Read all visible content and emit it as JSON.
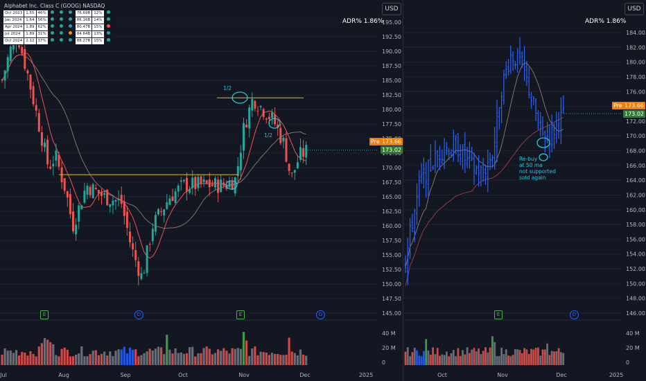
{
  "panes": [
    {
      "currency_label": "USD",
      "adr_label": "ADR%  1.86%",
      "price_axis": [
        "195.00",
        "192.50",
        "190.00",
        "187.50",
        "185.00",
        "182.50",
        "180.00",
        "177.50",
        "175.00",
        "172.50",
        "170.00",
        "167.50",
        "165.00",
        "162.50",
        "160.00",
        "157.50",
        "155.00",
        "152.50",
        "150.00",
        "147.50",
        "145.00"
      ],
      "pre_label": "Pre",
      "pre_price": "173.66",
      "last_price": "173.02",
      "volume_axis": [
        "40 M",
        "20 M",
        "0"
      ],
      "time_axis": [
        "Jul",
        "Aug",
        "Sep",
        "Oct",
        "Nov",
        "Dec",
        "2025"
      ],
      "earnings_marker": "E",
      "dividend_marker": "D",
      "annotations": [
        "1/2",
        "1/2"
      ],
      "table_title": "Alphabet Inc. Class C (GOOG) NASDAQ",
      "table_rows": [
        {
          "period": "Oct 2023",
          "eps": "1.55",
          "growth": "46%",
          "d1": "green",
          "d2": "green",
          "d3": "green",
          "rev": "76.69B",
          "rg": "12%",
          "d4": "green"
        },
        {
          "period": "Jan 2024",
          "eps": "1.64",
          "growth": "56%",
          "d1": "green",
          "d2": "green",
          "d3": "green",
          "rev": "86.16B",
          "rg": "14%",
          "d4": "green"
        },
        {
          "period": "Apr 2024",
          "eps": "1.89",
          "growth": "62%",
          "d1": "green",
          "d2": "green",
          "d3": "green",
          "rev": "80.47B",
          "rg": "15%",
          "d4": "red"
        },
        {
          "period": "Jul 2024",
          "eps": "1.89",
          "growth": "31%",
          "d1": "green",
          "d2": "green",
          "d3": "orange",
          "rev": "84.64B",
          "rg": "13%",
          "d4": "green"
        },
        {
          "period": "Oct 2024",
          "eps": "2.12",
          "growth": "37%",
          "d1": "green",
          "d2": "green",
          "d3": "green",
          "rev": "88.27B",
          "rg": "15%",
          "d4": "green"
        }
      ]
    },
    {
      "currency_label": "USD",
      "adr_label": "ADR%  1.86%",
      "price_axis": [
        "184.00",
        "182.00",
        "180.00",
        "178.00",
        "176.00",
        "174.00",
        "172.00",
        "170.00",
        "168.00",
        "166.00",
        "164.00",
        "162.00",
        "160.00",
        "158.00",
        "156.00",
        "154.00",
        "152.00",
        "150.00",
        "148.00",
        "146.00"
      ],
      "pre_label": "Pre",
      "pre_price": "173.66",
      "last_price": "173.02",
      "volume_axis": [
        "40 M",
        "20 M",
        "0"
      ],
      "time_axis": [
        "Oct",
        "Nov",
        "Dec",
        "2025"
      ],
      "earnings_marker": "E",
      "dividend_marker": "D",
      "annotation_lines": [
        "Re-buy",
        "at 50 ma",
        "not supported",
        "sold again"
      ]
    }
  ],
  "colors": {
    "up": "#26a69a",
    "down": "#ef5350",
    "background": "#131722",
    "grid": "#1e222d",
    "ma_fast": "#ef5350",
    "ma_slow": "#a1887f",
    "hline": "#f0b90b",
    "bars": "#2962ff",
    "circle": "#26c6da",
    "vol_up": "#4caf50",
    "vol_down": "#ef5350",
    "vol_neutral": "#787b86",
    "vol_blue": "#2962ff"
  }
}
